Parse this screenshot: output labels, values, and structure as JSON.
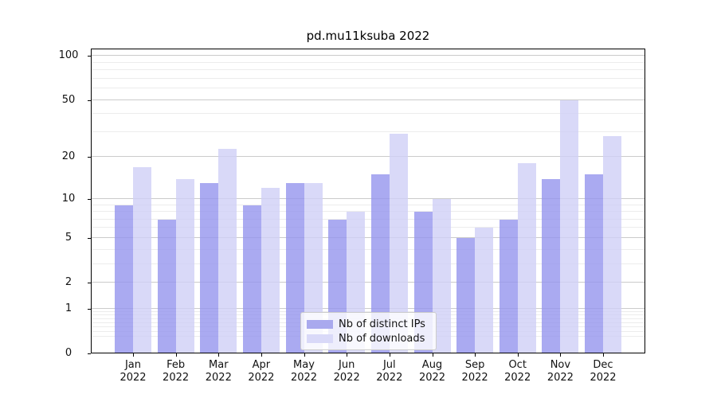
{
  "title": "pd.mu11ksuba 2022",
  "legend": {
    "entries": [
      {
        "label": "Nb of distinct IPs"
      },
      {
        "label": "Nb of downloads"
      }
    ]
  },
  "chart_data": {
    "type": "bar",
    "title": "pd.mu11ksuba 2022",
    "xlabel": "",
    "ylabel": "",
    "yscale": "log1p",
    "ylim": [
      0,
      112
    ],
    "grid": true,
    "legend_position": "lower center",
    "categories": [
      "Jan 2022",
      "Feb 2022",
      "Mar 2022",
      "Apr 2022",
      "May 2022",
      "Jun 2022",
      "Jul 2022",
      "Aug 2022",
      "Sep 2022",
      "Oct 2022",
      "Nov 2022",
      "Dec 2022"
    ],
    "month_labels": [
      "Jan",
      "Feb",
      "Mar",
      "Apr",
      "May",
      "Jun",
      "Jul",
      "Aug",
      "Sep",
      "Oct",
      "Nov",
      "Dec"
    ],
    "year_label": "2022",
    "series": [
      {
        "name": "Nb of distinct IPs",
        "color": "#a9a9ee",
        "fill_rgba": "rgba(149,149,237,0.8)",
        "values": [
          9,
          7,
          13,
          9,
          13,
          7,
          15,
          8,
          5,
          7,
          14,
          15
        ]
      },
      {
        "name": "Nb of downloads",
        "color": "#d9d9f8",
        "fill_rgba": "rgba(208,208,246,0.8)",
        "values": [
          17,
          14,
          23,
          12,
          13,
          8,
          29,
          10,
          6,
          18,
          50,
          28
        ]
      }
    ],
    "ytick_values": [
      100,
      50,
      20,
      10,
      5,
      2,
      1,
      0
    ],
    "ytick_labels": [
      "100",
      "50",
      "20",
      "10",
      "5",
      "2",
      "1",
      "0"
    ],
    "minor_grid_values": [
      0.3,
      0.4,
      0.5,
      0.6,
      0.7,
      0.8,
      0.9,
      3,
      4,
      6,
      7,
      8,
      9,
      30,
      40,
      60,
      70,
      80,
      90
    ],
    "major_grid_values": [
      1,
      2,
      5,
      10,
      20,
      50,
      100
    ],
    "grid_major_color": "#cbcbcb",
    "grid_minor_color": "#ececec",
    "spine_color": "#000000"
  }
}
